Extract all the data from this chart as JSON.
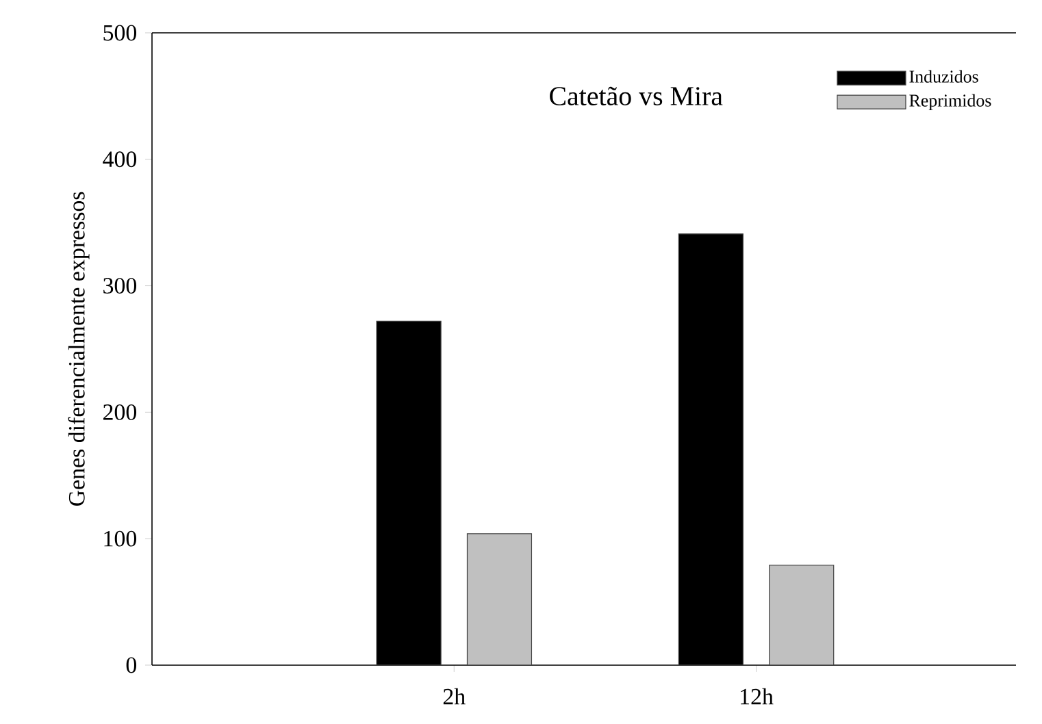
{
  "chart_data": {
    "type": "bar",
    "title": "Catetão vs Mira",
    "ylabel": "Genes diferencialmente expressos",
    "categories": [
      "2h",
      "12h"
    ],
    "series": [
      {
        "name": "Induzidos",
        "color": "#000000",
        "values": [
          272,
          341
        ]
      },
      {
        "name": "Reprimidos",
        "color": "#c0c0c0",
        "values": [
          104,
          79
        ]
      }
    ],
    "ylim": [
      0,
      500
    ],
    "yticks": [
      0,
      100,
      200,
      300,
      400,
      500
    ],
    "grid": false,
    "legend": "top right"
  }
}
